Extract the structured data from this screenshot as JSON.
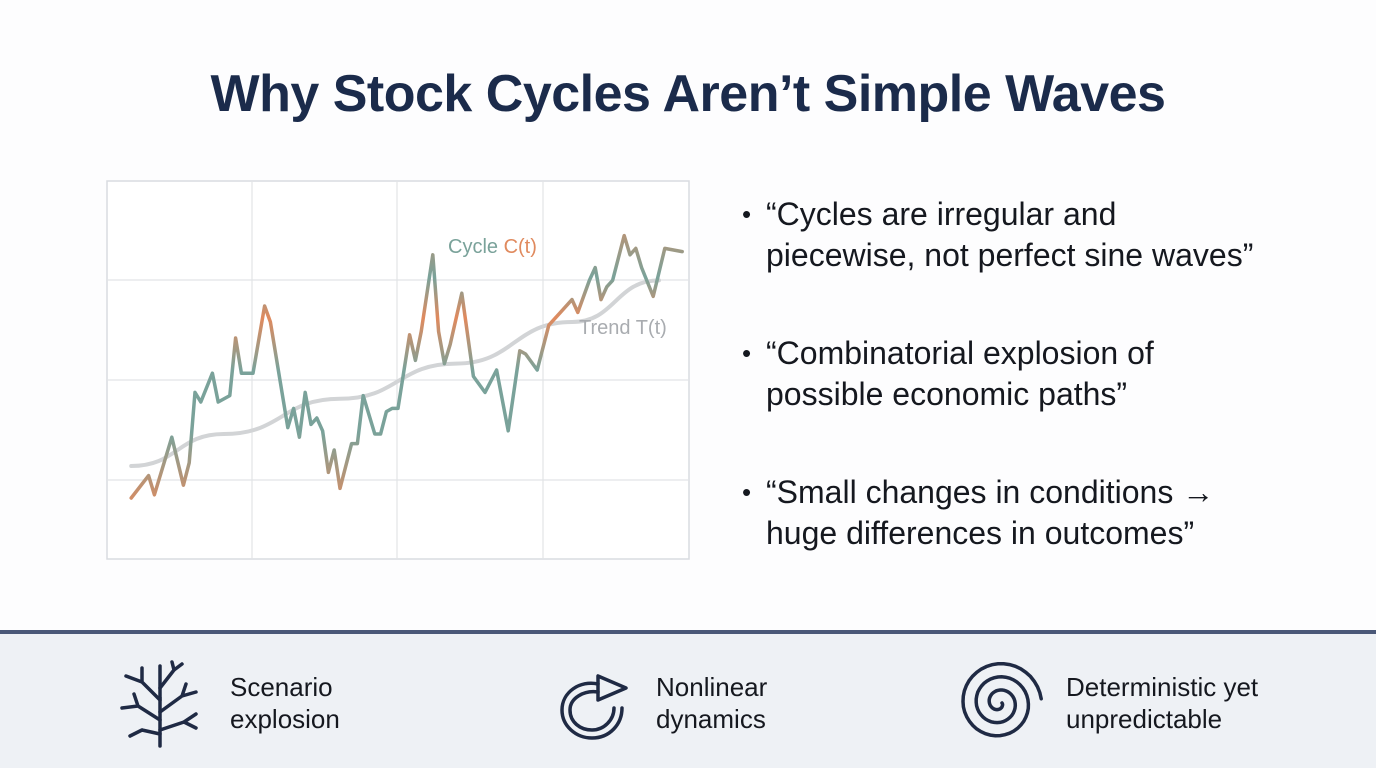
{
  "title": "Why Stock Cycles Aren’t Simple Waves",
  "chart_data": {
    "type": "line",
    "xlim": [
      0,
      100
    ],
    "ylim": [
      0,
      100
    ],
    "grid": true,
    "series": [
      {
        "name": "Cycle C(t)",
        "colors": [
          "#7aa29a",
          "#e08a5e"
        ],
        "points": [
          [
            4,
            10
          ],
          [
            7,
            17
          ],
          [
            8,
            11
          ],
          [
            11,
            29
          ],
          [
            13,
            14
          ],
          [
            14,
            21
          ],
          [
            15,
            43
          ],
          [
            16,
            40
          ],
          [
            18,
            49
          ],
          [
            19,
            40
          ],
          [
            21,
            42
          ],
          [
            22,
            60
          ],
          [
            23,
            49
          ],
          [
            25,
            49
          ],
          [
            27,
            70
          ],
          [
            28,
            65
          ],
          [
            31,
            32
          ],
          [
            32,
            38
          ],
          [
            33,
            29
          ],
          [
            34,
            43
          ],
          [
            35,
            33
          ],
          [
            36,
            35
          ],
          [
            37,
            31
          ],
          [
            38,
            18
          ],
          [
            39,
            25
          ],
          [
            40,
            13
          ],
          [
            42,
            27
          ],
          [
            43,
            27
          ],
          [
            44,
            42
          ],
          [
            46,
            30
          ],
          [
            47,
            30
          ],
          [
            48,
            37
          ],
          [
            49,
            38
          ],
          [
            50,
            38
          ],
          [
            52,
            61
          ],
          [
            53,
            53
          ],
          [
            54,
            62
          ],
          [
            56,
            86
          ],
          [
            57,
            62
          ],
          [
            58,
            52
          ],
          [
            59,
            58
          ],
          [
            61,
            74
          ],
          [
            63,
            48
          ],
          [
            65,
            43
          ],
          [
            67,
            50
          ],
          [
            69,
            31
          ],
          [
            71,
            56
          ],
          [
            72,
            55
          ],
          [
            74,
            50
          ],
          [
            76,
            64
          ],
          [
            78,
            68
          ],
          [
            80,
            72
          ],
          [
            81,
            68
          ],
          [
            83,
            78
          ],
          [
            84,
            82
          ],
          [
            85,
            72
          ],
          [
            86,
            76
          ],
          [
            87,
            78
          ],
          [
            89,
            92
          ],
          [
            90,
            86
          ],
          [
            91,
            88
          ],
          [
            92,
            82
          ],
          [
            94,
            73
          ],
          [
            96,
            88
          ],
          [
            99,
            87
          ]
        ]
      },
      {
        "name": "Trend T(t)",
        "color": "#d2d4d6",
        "points": [
          [
            4,
            20
          ],
          [
            20,
            30
          ],
          [
            40,
            41
          ],
          [
            60,
            52
          ],
          [
            80,
            65
          ],
          [
            95,
            78
          ]
        ]
      }
    ]
  },
  "bullets": [
    {
      "line1": "“Cycles are irregular and",
      "line2": "piecewise, not perfect sine waves”"
    },
    {
      "line1": "“Combinatorial explosion of",
      "line2": "possible economic paths”"
    },
    {
      "line1": "“Small changes in conditions →",
      "line2": "huge differences in outcomes”"
    }
  ],
  "features": [
    {
      "icon": "tree-branch-icon",
      "line1": "Scenario",
      "line2": "explosion"
    },
    {
      "icon": "circular-arrow-icon",
      "line1": "Nonlinear",
      "line2": "dynamics"
    },
    {
      "icon": "spiral-icon",
      "line1": "Deterministic yet",
      "line2": "unpredictable"
    }
  ],
  "colors": {
    "title": "#1b2b4b",
    "footer_bg": "#eef1f5",
    "footer_border": "#4a5878",
    "icon": "#1f2a44"
  }
}
